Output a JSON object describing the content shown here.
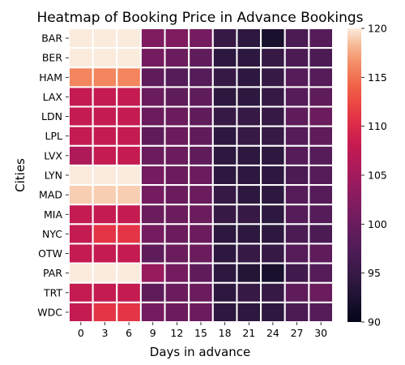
{
  "chart_data": {
    "type": "heatmap",
    "title": "Heatmap of Booking Price in Advance Bookings",
    "xlabel": "Days in advance",
    "ylabel": "Cities",
    "x_categories": [
      "0",
      "3",
      "6",
      "9",
      "12",
      "15",
      "18",
      "21",
      "24",
      "27",
      "30"
    ],
    "y_categories": [
      "BAR",
      "BER",
      "HAM",
      "LAX",
      "LDN",
      "LPL",
      "LVX",
      "LYN",
      "MAD",
      "MIA",
      "NYC",
      "OTW",
      "PAR",
      "TRT",
      "WDC"
    ],
    "values": [
      [
        120,
        120,
        120,
        102,
        102,
        101,
        95,
        94,
        92,
        97,
        98
      ],
      [
        120,
        120,
        120,
        101,
        100,
        99,
        94,
        94,
        95,
        97,
        97
      ],
      [
        116,
        116,
        116,
        99,
        98,
        98,
        95,
        94,
        95,
        98,
        98
      ],
      [
        108,
        108,
        108,
        100,
        99,
        99,
        94,
        94,
        95,
        98,
        99
      ],
      [
        108,
        108,
        108,
        100,
        100,
        99,
        95,
        95,
        95,
        99,
        100
      ],
      [
        108,
        108,
        108,
        99,
        100,
        99,
        94,
        95,
        95,
        98,
        99
      ],
      [
        106,
        108,
        108,
        100,
        100,
        99,
        94,
        94,
        94,
        98,
        98
      ],
      [
        120,
        120,
        120,
        101,
        100,
        100,
        94,
        94,
        94,
        97,
        98
      ],
      [
        119,
        119,
        119,
        101,
        100,
        100,
        95,
        94,
        94,
        98,
        98
      ],
      [
        108,
        108,
        108,
        100,
        100,
        100,
        95,
        95,
        94,
        98,
        98
      ],
      [
        108,
        111,
        111,
        101,
        100,
        100,
        94,
        94,
        94,
        97,
        97
      ],
      [
        108,
        108,
        108,
        99,
        100,
        100,
        94,
        95,
        95,
        98,
        99
      ],
      [
        120,
        120,
        120,
        104,
        101,
        99,
        94,
        93,
        92,
        96,
        98
      ],
      [
        108,
        108,
        108,
        99,
        100,
        100,
        94,
        95,
        95,
        99,
        100
      ],
      [
        108,
        111,
        111,
        101,
        100,
        100,
        94,
        94,
        94,
        97,
        98
      ]
    ],
    "colorbar": {
      "min": 90,
      "max": 120,
      "ticks": [
        "90",
        "95",
        "100",
        "105",
        "110",
        "115",
        "120"
      ],
      "colormap": "rocket"
    },
    "grid": false,
    "cell_border_color": "#ffffff"
  }
}
